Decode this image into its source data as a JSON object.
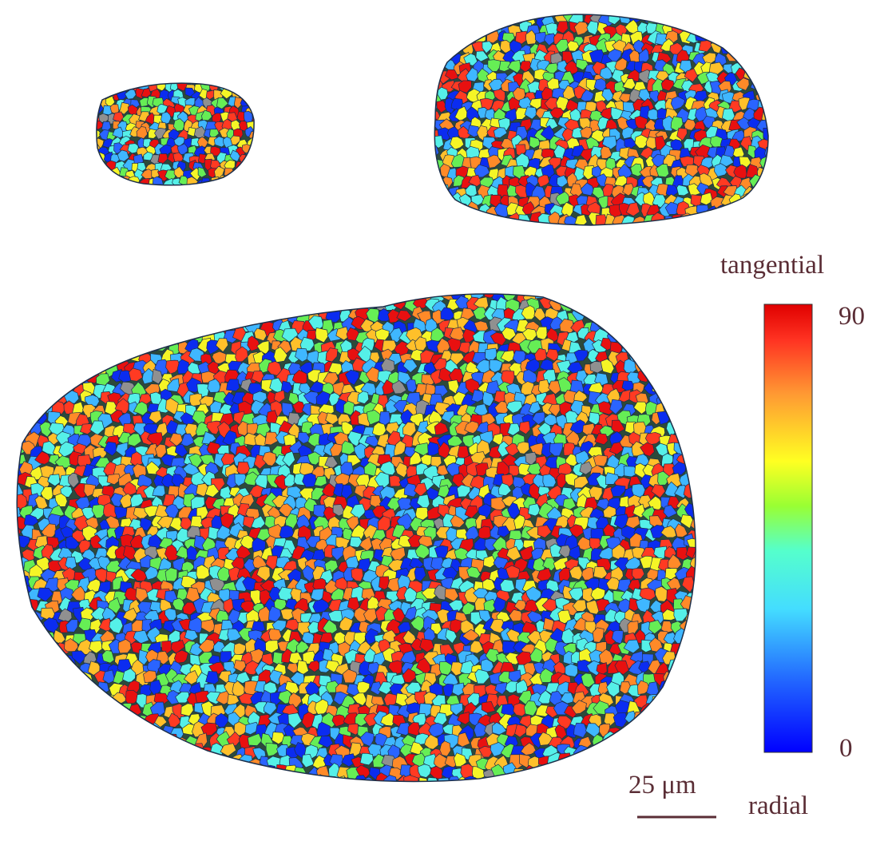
{
  "colorbar": {
    "top_label": "tangential",
    "bottom_label": "radial",
    "max_tick": "90",
    "min_tick": "0",
    "range": [
      0,
      90
    ],
    "colormap": [
      "#0000ff",
      "#00aaff",
      "#55ffee",
      "#66ff33",
      "#ffff00",
      "#ffaa00",
      "#ff2200",
      "#e00000"
    ]
  },
  "scale_bar": {
    "label": "25 μm"
  },
  "grains": {
    "count": 3,
    "inclusion_color": "#909090",
    "edge_color": "#1d2f4a"
  },
  "text_color": "#5a2d35"
}
